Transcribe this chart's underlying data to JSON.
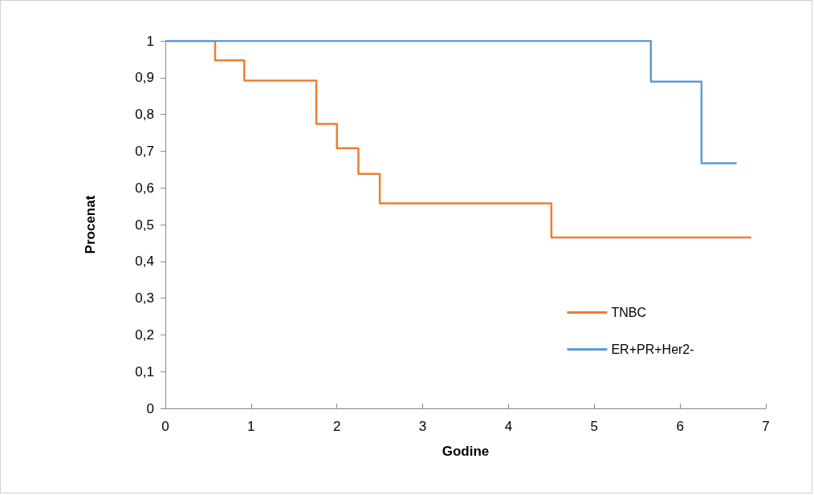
{
  "chart_data": {
    "type": "step",
    "xlabel": "Godine",
    "ylabel": "Procenat",
    "series": [
      {
        "name": "TNBC",
        "color": "#ed7d31",
        "x": [
          0,
          0.58,
          0.92,
          1.76,
          2,
          2.25,
          2.5,
          4.5,
          6.83
        ],
        "values": [
          1,
          0.947,
          0.892,
          0.774,
          0.708,
          0.638,
          0.558,
          0.465,
          0.465
        ]
      },
      {
        "name": "ER+PR+Her2-",
        "color": "#5b9bd5",
        "x": [
          0,
          5.66,
          6.25,
          6.66
        ],
        "values": [
          1,
          0.889,
          0.667,
          0.667
        ]
      }
    ],
    "xlim": [
      0,
      7
    ],
    "xticks": [
      0,
      1,
      2,
      3,
      4,
      5,
      6,
      7
    ],
    "ylim": [
      0,
      1
    ],
    "yticks": [
      0,
      {
        "value": 0.1,
        "label": "0,1"
      },
      {
        "value": 0.2,
        "label": "0,2"
      },
      {
        "value": 0.3,
        "label": "0,3"
      },
      {
        "value": 0.4,
        "label": "0,4"
      },
      {
        "value": 0.5,
        "label": "0,5"
      },
      {
        "value": 0.6,
        "label": "0,6"
      },
      {
        "value": 0.7,
        "label": "0,7"
      },
      {
        "value": 0.8,
        "label": "0,8"
      },
      {
        "value": 0.9,
        "label": "0,9"
      },
      1
    ],
    "grid": false,
    "legend": "bottom right",
    "marker": "none",
    "line_style": "solid"
  }
}
